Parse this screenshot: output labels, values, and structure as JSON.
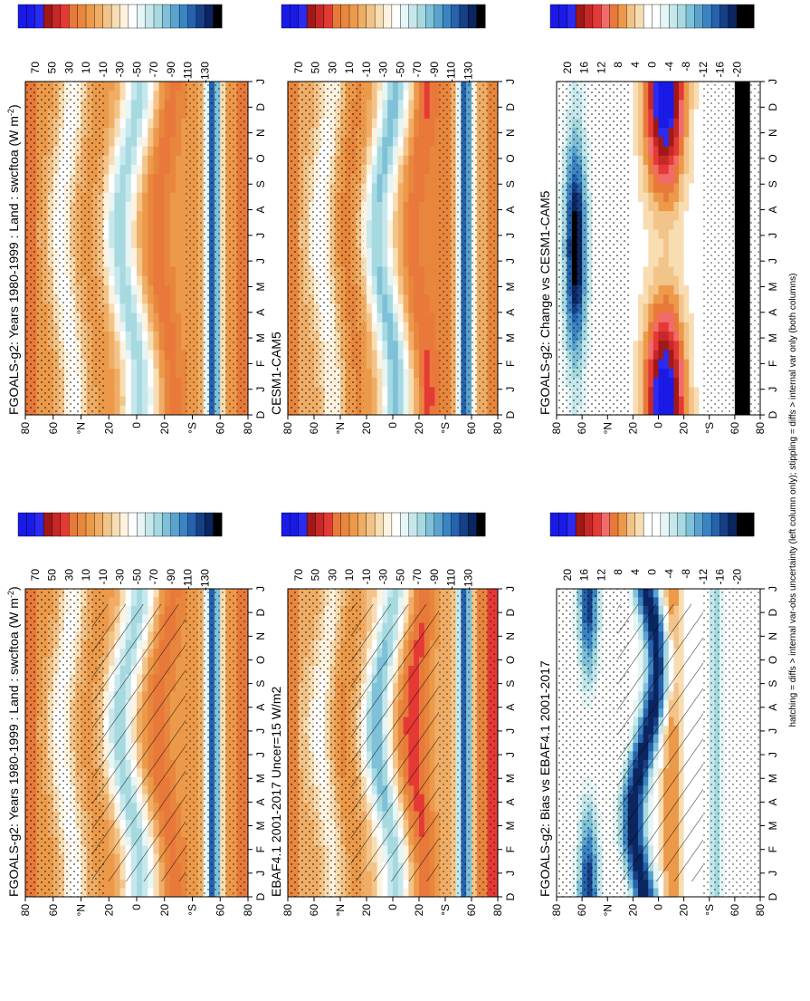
{
  "footnote": "hatching = diffs > internal var-obs uncertainty (left column only); stippling = diffs > internal var only (both columns)",
  "chart_data": [
    {
      "id": "p1",
      "type": "heatmap",
      "title": "FGOALS-g2: Years 1980-1999 : Land : swcftoa (W m",
      "title_sup": "-2",
      "title_end": ")",
      "months": [
        "D",
        "J",
        "F",
        "M",
        "A",
        "M",
        "J",
        "J",
        "A",
        "S",
        "O",
        "N",
        "D",
        "J"
      ],
      "lat_ticks": [
        "80",
        "60",
        "°N",
        "20",
        "0",
        "20",
        "°S",
        "60",
        "80"
      ],
      "lat_values": [
        80,
        60,
        40,
        20,
        0,
        -20,
        -40,
        -60,
        -80
      ],
      "colorbar": "abs",
      "hatching": true,
      "stippling": true,
      "pattern": "climatology"
    },
    {
      "id": "p2",
      "type": "heatmap",
      "title": "FGOALS-g2: Years 1980-1999 : Land : swcftoa (W m",
      "title_sup": "-2",
      "title_end": ")",
      "months": [
        "D",
        "J",
        "F",
        "M",
        "A",
        "M",
        "J",
        "J",
        "A",
        "S",
        "O",
        "N",
        "D",
        "J"
      ],
      "lat_ticks": [
        "80",
        "60",
        "°N",
        "20",
        "0",
        "20",
        "°S",
        "60",
        "80"
      ],
      "lat_values": [
        80,
        60,
        40,
        20,
        0,
        -20,
        -40,
        -60,
        -80
      ],
      "colorbar": "abs",
      "hatching": false,
      "stippling": true,
      "pattern": "climatology"
    },
    {
      "id": "p3",
      "type": "heatmap",
      "title": "EBAF4.1 2001-2017 Uncer=15 W/m2",
      "months": [
        "D",
        "J",
        "F",
        "M",
        "A",
        "M",
        "J",
        "J",
        "A",
        "S",
        "O",
        "N",
        "D",
        "J"
      ],
      "lat_ticks": [
        "80",
        "60",
        "°N",
        "20",
        "0",
        "20",
        "°S",
        "60",
        "80"
      ],
      "lat_values": [
        80,
        60,
        40,
        20,
        0,
        -20,
        -40,
        -60,
        -80
      ],
      "colorbar": "abs",
      "hatching": true,
      "stippling": true,
      "pattern": "climatology_obs"
    },
    {
      "id": "p4",
      "type": "heatmap",
      "title": "CESM1-CAM5",
      "months": [
        "D",
        "J",
        "F",
        "M",
        "A",
        "M",
        "J",
        "J",
        "A",
        "S",
        "O",
        "N",
        "D",
        "J"
      ],
      "lat_ticks": [
        "80",
        "60",
        "°N",
        "20",
        "0",
        "20",
        "°S",
        "60",
        "80"
      ],
      "lat_values": [
        80,
        60,
        40,
        20,
        0,
        -20,
        -40,
        -60,
        -80
      ],
      "colorbar": "abs",
      "hatching": false,
      "stippling": true,
      "pattern": "climatology_cesm"
    },
    {
      "id": "p5",
      "type": "heatmap",
      "title": "FGOALS-g2: Bias vs EBAF4.1 2001-2017",
      "months": [
        "D",
        "J",
        "F",
        "M",
        "A",
        "M",
        "J",
        "J",
        "A",
        "S",
        "O",
        "N",
        "D",
        "J"
      ],
      "lat_ticks": [
        "80",
        "60",
        "°N",
        "20",
        "0",
        "20",
        "°S",
        "60",
        "80"
      ],
      "lat_values": [
        80,
        60,
        40,
        20,
        0,
        -20,
        -40,
        -60,
        -80
      ],
      "colorbar": "diff",
      "hatching": true,
      "stippling": true,
      "pattern": "bias"
    },
    {
      "id": "p6",
      "type": "heatmap",
      "title": "FGOALS-g2: Change vs CESM1-CAM5",
      "months": [
        "D",
        "J",
        "F",
        "M",
        "A",
        "M",
        "J",
        "J",
        "A",
        "S",
        "O",
        "N",
        "D",
        "J"
      ],
      "lat_ticks": [
        "80",
        "60",
        "°N",
        "20",
        "0",
        "20",
        "°S",
        "60",
        "80"
      ],
      "lat_values": [
        80,
        60,
        40,
        20,
        0,
        -20,
        -40,
        -60,
        -80
      ],
      "colorbar": "diff",
      "hatching": false,
      "stippling": true,
      "pattern": "change"
    }
  ],
  "colorbars": {
    "abs": {
      "labels": [
        "70",
        "50",
        "30",
        "10",
        "-10",
        "-30",
        "-50",
        "-70",
        "-90",
        "-110",
        "-130"
      ],
      "colors": [
        "#1a1ae6",
        "#1a1ae6",
        "#2a2af0",
        "#a01818",
        "#c62828",
        "#e53935",
        "#e8793a",
        "#e8863d",
        "#ec9a4a",
        "#efad66",
        "#f3c489",
        "#f8ddb3",
        "#fff3e0",
        "#ffffff",
        "#e6f5f5",
        "#c6e8ec",
        "#a7d9e0",
        "#7ec1d8",
        "#5aa3cf",
        "#3b84c2",
        "#2662ad",
        "#163f85",
        "#0b2560",
        "#000000"
      ]
    },
    "diff": {
      "labels": [
        "20",
        "16",
        "12",
        "8",
        "4",
        "0",
        "-4",
        "-8",
        "-12",
        "-16",
        "-20"
      ],
      "colors": [
        "#1a1ae6",
        "#1a1ae6",
        "#2a2af0",
        "#a01818",
        "#c62828",
        "#e53935",
        "#f26b6b",
        "#e8793a",
        "#ec9a4a",
        "#f3c489",
        "#f8ddb3",
        "#ffffff",
        "#ffffff",
        "#e6f5f5",
        "#c6e8ec",
        "#a7d9e0",
        "#7ec1d8",
        "#5aa3cf",
        "#3b84c2",
        "#2662ad",
        "#163f85",
        "#0b2560",
        "#000000",
        "#000000"
      ]
    }
  }
}
